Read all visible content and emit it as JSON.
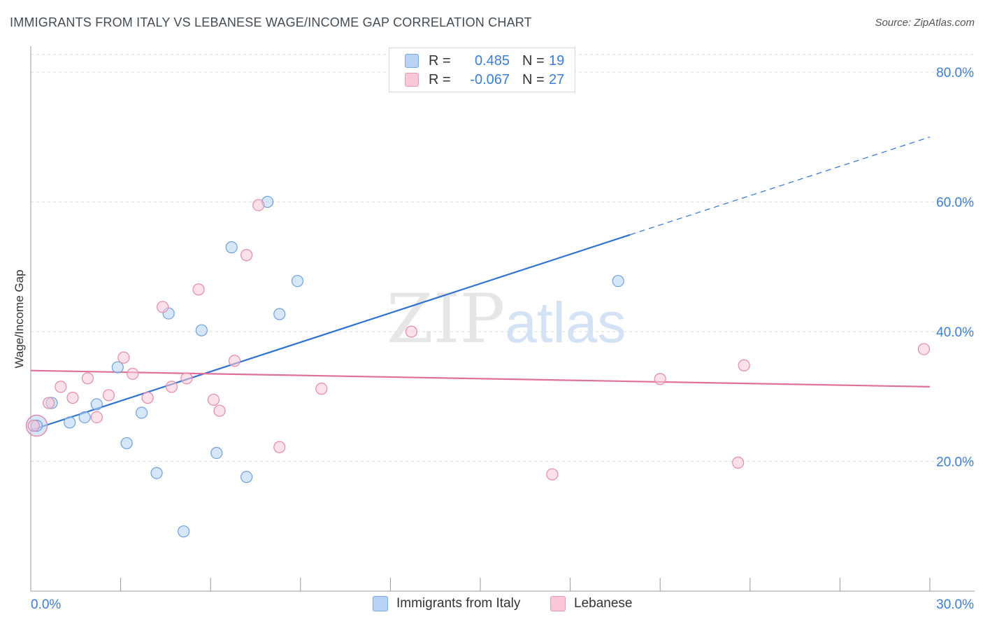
{
  "title": "IMMIGRANTS FROM ITALY VS LEBANESE WAGE/INCOME GAP CORRELATION CHART",
  "source": "Source: ZipAtlas.com",
  "watermark": {
    "zip": "ZIP",
    "atlas": "atlas"
  },
  "legend": {
    "rows": [
      {
        "r_label": "R =",
        "r_value": "0.485",
        "n_label": "N =",
        "n_value": "19"
      },
      {
        "r_label": "R =",
        "r_value": "-0.067",
        "n_label": "N =",
        "n_value": "27"
      }
    ]
  },
  "bottom_legend": [
    "Immigrants from Italy",
    "Lebanese"
  ],
  "colors": {
    "blue_fill": "#b7d3f5",
    "blue_stroke": "#6fa0dc",
    "blue_line": "#2f72d0",
    "pink_fill": "#f9c8d7",
    "pink_stroke": "#e48aaa",
    "pink_line": "#e0709a",
    "grid": "#dddddd",
    "tick_text": "#3b7dd8"
  },
  "chart_data": {
    "type": "scatter",
    "title": "IMMIGRANTS FROM ITALY VS LEBANESE WAGE/INCOME GAP CORRELATION CHART",
    "xlabel": "",
    "ylabel": "Wage/Income Gap",
    "xlim": [
      0,
      30
    ],
    "ylim": [
      0,
      84
    ],
    "x_tick_labels": [
      "0.0%",
      "30.0%"
    ],
    "y_ticks": [
      20,
      40,
      60,
      80
    ],
    "y_tick_labels": [
      "20.0%",
      "40.0%",
      "60.0%",
      "80.0%"
    ],
    "grid": true,
    "series": [
      {
        "name": "Immigrants from Italy",
        "r": 0.485,
        "n": 19,
        "points": [
          [
            0.2,
            25.5
          ],
          [
            0.7,
            29.0
          ],
          [
            1.3,
            26.0
          ],
          [
            1.8,
            26.8
          ],
          [
            2.2,
            28.8
          ],
          [
            2.9,
            34.5
          ],
          [
            3.2,
            22.8
          ],
          [
            3.7,
            27.5
          ],
          [
            4.2,
            18.2
          ],
          [
            4.6,
            42.8
          ],
          [
            5.1,
            9.2
          ],
          [
            5.7,
            40.2
          ],
          [
            6.2,
            21.3
          ],
          [
            6.7,
            53.0
          ],
          [
            7.2,
            17.6
          ],
          [
            7.9,
            60.0
          ],
          [
            8.3,
            42.7
          ],
          [
            8.9,
            47.8
          ],
          [
            19.6,
            47.8
          ]
        ],
        "trend": {
          "x0": 0,
          "y0": 24.8,
          "x1": 30,
          "y1": 70.0,
          "solid_until_x": 20.0
        }
      },
      {
        "name": "Lebanese",
        "r": -0.067,
        "n": 27,
        "points": [
          [
            0.1,
            25.5
          ],
          [
            0.6,
            29.0
          ],
          [
            1.0,
            31.5
          ],
          [
            1.4,
            29.8
          ],
          [
            1.9,
            32.8
          ],
          [
            2.2,
            26.8
          ],
          [
            2.6,
            30.2
          ],
          [
            3.1,
            36.0
          ],
          [
            3.4,
            33.5
          ],
          [
            3.9,
            29.8
          ],
          [
            4.4,
            43.8
          ],
          [
            4.7,
            31.5
          ],
          [
            5.2,
            32.8
          ],
          [
            5.6,
            46.5
          ],
          [
            6.1,
            29.5
          ],
          [
            6.3,
            27.8
          ],
          [
            6.8,
            35.5
          ],
          [
            7.2,
            51.8
          ],
          [
            7.6,
            59.5
          ],
          [
            8.3,
            22.2
          ],
          [
            9.7,
            31.2
          ],
          [
            12.7,
            40.0
          ],
          [
            17.4,
            18.0
          ],
          [
            21.0,
            32.7
          ],
          [
            23.6,
            19.8
          ],
          [
            23.8,
            34.8
          ],
          [
            29.8,
            37.3
          ]
        ],
        "trend": {
          "x0": 0,
          "y0": 34.0,
          "x1": 30,
          "y1": 31.5
        }
      }
    ]
  }
}
